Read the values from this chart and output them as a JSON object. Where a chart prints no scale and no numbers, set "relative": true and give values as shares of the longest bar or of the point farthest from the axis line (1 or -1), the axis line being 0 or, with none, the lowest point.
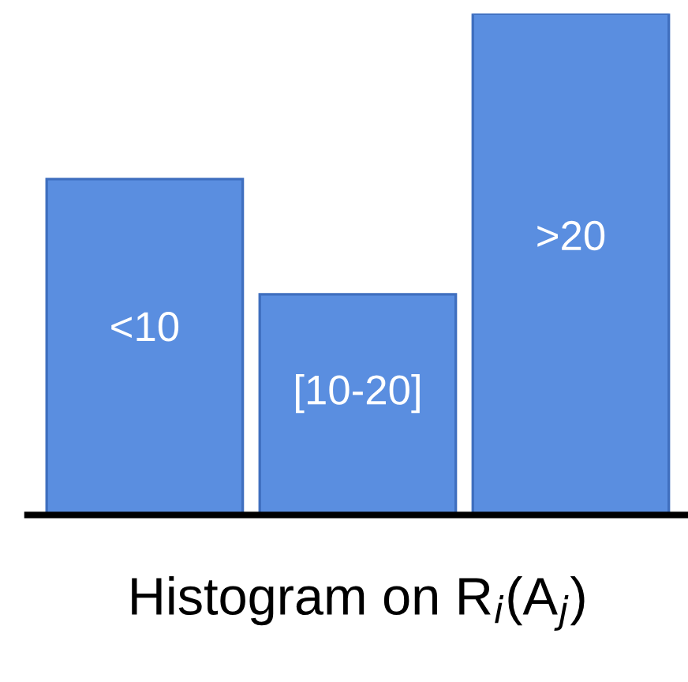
{
  "chart_data": {
    "type": "bar",
    "relative": true,
    "categories": [
      "<10",
      "[10-20]",
      ">20"
    ],
    "values": [
      0.67,
      0.44,
      1
    ],
    "color": "#5a8ee0",
    "xlabel": "Histogram on R$_{i}$(A$_{j}$)"
  }
}
